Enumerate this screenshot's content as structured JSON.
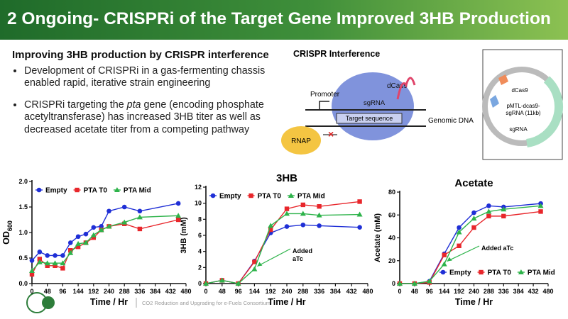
{
  "header": {
    "title": "2 Ongoing- CRISPRi of the Target Gene Improved 3HB Production"
  },
  "subtitle": "Improving 3HB production by CRISPR interference",
  "bullets": [
    [
      "Development of CRISPRi in a gas-fermenting chassis enabled rapid, iterative strain engineering"
    ],
    [
      "CRISPRi targeting the ",
      "pta",
      " gene (encoding phosphate acetyltransferase) has increased 3HB titer as well as decreased acetate titer from a competing pathway"
    ]
  ],
  "diagram": {
    "title": "CRISPR Interference",
    "dcas9": "dCas9",
    "promoter": "Promoter",
    "sgrna": "sgRNA",
    "target": "Target sequence",
    "genomic_dna": "Genomic DNA",
    "rnap": "RNAP",
    "plasmid_name": [
      "pMTL-dcas9-",
      "sgRNA (11kb)"
    ],
    "plasmid_dcas9": "dCas9",
    "plasmid_sgrna": "sgRNA"
  },
  "footer": {
    "consortium": "CO2 Reduction and Upgrading for e-Fuels Consortium"
  },
  "chart_data": [
    {
      "type": "line",
      "xlabel": "Time / Hr",
      "ylabel": {
        "main": "OD",
        "sub": "600"
      },
      "legend": "upper left",
      "x": [
        0,
        24,
        48,
        72,
        96,
        120,
        144,
        168,
        192,
        216,
        240,
        288,
        336,
        456
      ],
      "xlim": [
        0,
        480
      ],
      "xticks": [
        0,
        48,
        96,
        144,
        192,
        240,
        288,
        336,
        384,
        432,
        480
      ],
      "ylim": [
        0,
        2
      ],
      "yticks": [
        {
          "value": 0,
          "label": "0.0"
        },
        0.5,
        {
          "value": 1,
          "label": "1.0"
        },
        1.5,
        {
          "value": 2,
          "label": "2.0"
        }
      ],
      "series": [
        {
          "name": "Empty",
          "color": "#1f2fd6",
          "marker": "circle",
          "values": [
            0.45,
            0.62,
            0.55,
            0.55,
            0.55,
            0.8,
            0.92,
            0.97,
            1.1,
            1.12,
            1.42,
            1.5,
            1.42,
            1.57
          ]
        },
        {
          "name": "PTA T0",
          "color": "#e8262b",
          "marker": "square",
          "values": [
            0.18,
            0.48,
            0.35,
            0.35,
            0.3,
            0.65,
            0.72,
            0.8,
            0.9,
            1.05,
            1.12,
            1.17,
            1.07,
            1.25
          ]
        },
        {
          "name": "PTA Mid",
          "color": "#2db34a",
          "marker": "triangle",
          "values": [
            0.25,
            0.42,
            0.4,
            0.4,
            0.4,
            0.6,
            0.78,
            0.8,
            0.95,
            1.05,
            1.12,
            1.2,
            1.3,
            1.33
          ]
        }
      ]
    },
    {
      "type": "line",
      "title": "3HB",
      "xlabel": "Time / Hr",
      "ylabel": "3HB (mM)",
      "legend": "upper left",
      "annotation": [
        "Added",
        "aTc"
      ],
      "x": [
        0,
        48,
        96,
        144,
        192,
        240,
        288,
        336,
        456
      ],
      "xlim": [
        0,
        480
      ],
      "xticks": [
        0,
        48,
        96,
        144,
        192,
        240,
        288,
        336,
        384,
        432,
        480
      ],
      "ylim": [
        0,
        12
      ],
      "yticks": [
        0,
        2,
        4,
        6,
        8,
        10,
        12
      ],
      "series": [
        {
          "name": "Empty",
          "color": "#1f2fd6",
          "marker": "circle",
          "values": [
            0,
            0.4,
            0,
            2.8,
            6.3,
            7.1,
            7.3,
            7.2,
            7.0
          ]
        },
        {
          "name": "PTA T0",
          "color": "#e8262b",
          "marker": "square",
          "values": [
            0,
            0.4,
            0,
            2.7,
            6.7,
            9.3,
            9.8,
            9.6,
            10.2
          ]
        },
        {
          "name": "PTA Mid",
          "color": "#2db34a",
          "marker": "triangle",
          "values": [
            0,
            0.4,
            0,
            1.8,
            7.2,
            8.7,
            8.7,
            8.5,
            8.6
          ]
        }
      ]
    },
    {
      "type": "line",
      "title": "Acetate",
      "xlabel": "Time / Hr",
      "ylabel": "Acetate (mM)",
      "legend": "lower right",
      "annotation": "Added aTc",
      "x": [
        0,
        48,
        96,
        144,
        192,
        240,
        288,
        336,
        456
      ],
      "xlim": [
        0,
        480
      ],
      "xticks": [
        0,
        48,
        96,
        144,
        192,
        240,
        288,
        336,
        384,
        432,
        480
      ],
      "ylim": [
        0,
        80
      ],
      "yticks": [
        0,
        20,
        40,
        60,
        80
      ],
      "series": [
        {
          "name": "Empty",
          "color": "#1f2fd6",
          "marker": "circle",
          "values": [
            0,
            0,
            2,
            26,
            49,
            62,
            68,
            67,
            70
          ]
        },
        {
          "name": "PTA T0",
          "color": "#e8262b",
          "marker": "square",
          "values": [
            0,
            0,
            1,
            25,
            33,
            49,
            59,
            59,
            63
          ]
        },
        {
          "name": "PTA Mid",
          "color": "#2db34a",
          "marker": "triangle",
          "values": [
            0,
            0,
            2,
            17,
            45,
            57,
            63,
            65,
            68
          ]
        }
      ]
    }
  ]
}
